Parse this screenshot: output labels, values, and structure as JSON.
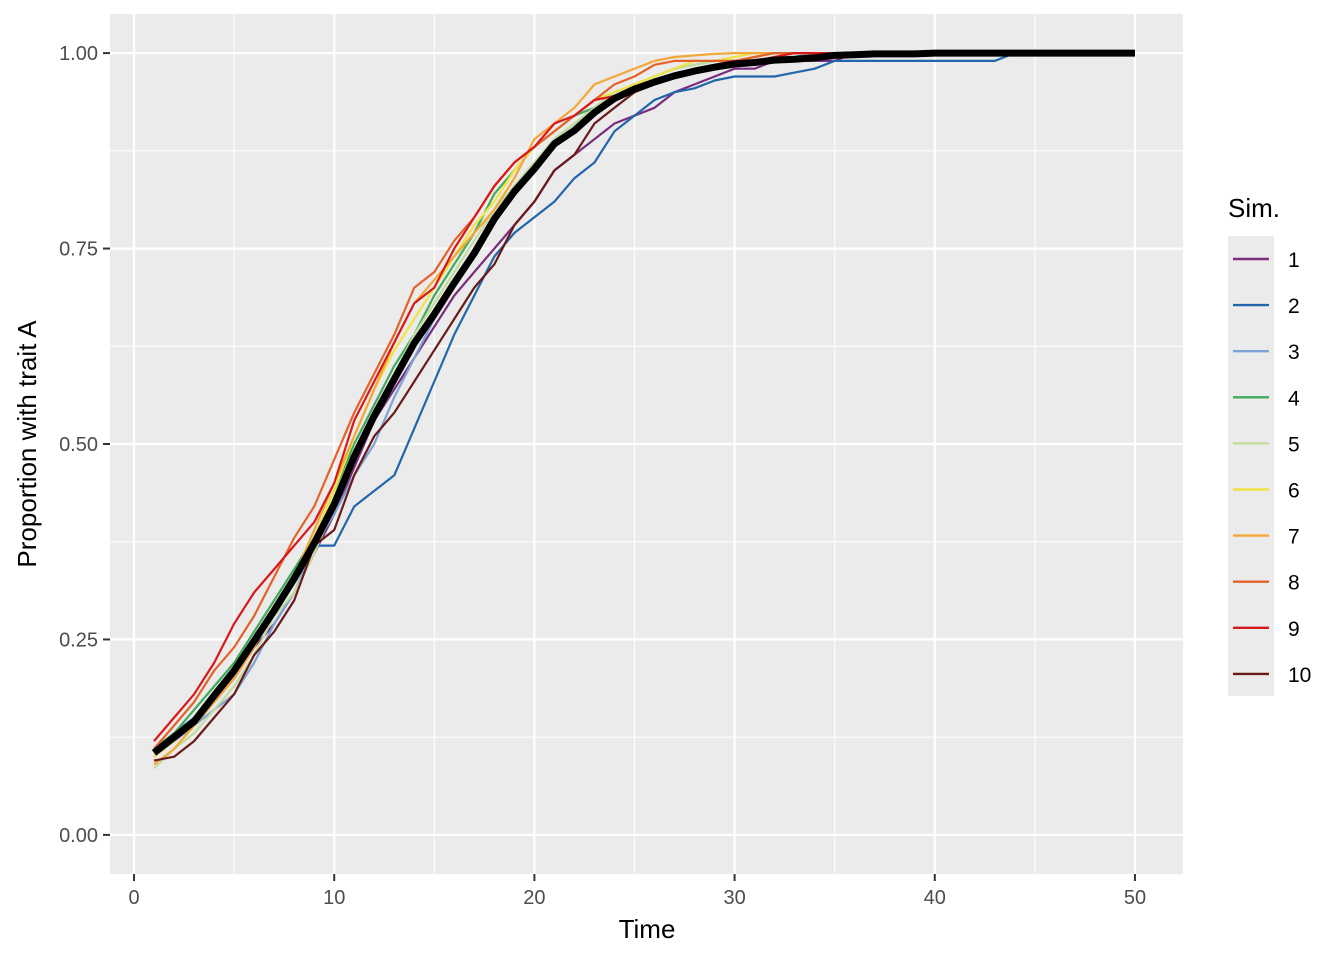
{
  "chart_data": {
    "type": "line",
    "xlabel": "Time",
    "ylabel": "Proportion with trait A",
    "xlim": [
      -1.2,
      52.4
    ],
    "ylim": [
      -0.05,
      1.05
    ],
    "xticks": [
      0,
      10,
      20,
      30,
      40,
      50
    ],
    "xtick_labels": [
      "0",
      "10",
      "20",
      "30",
      "40",
      "50"
    ],
    "yticks": [
      0,
      0.25,
      0.5,
      0.75,
      1
    ],
    "ytick_labels": [
      "0.00",
      "0.25",
      "0.50",
      "0.75",
      "1.00"
    ],
    "grid": true,
    "background": "#ebebeb",
    "legend": {
      "title": "Sim.",
      "position": "right"
    },
    "x": [
      1,
      2,
      3,
      4,
      5,
      6,
      7,
      8,
      9,
      10,
      11,
      12,
      13,
      14,
      15,
      16,
      17,
      18,
      19,
      20,
      21,
      22,
      23,
      24,
      25,
      26,
      27,
      28,
      29,
      30,
      31,
      32,
      33,
      34,
      35,
      36,
      37,
      38,
      39,
      40,
      41,
      42,
      43,
      44,
      45,
      46,
      47,
      48,
      49,
      50
    ],
    "series": [
      {
        "name": "1",
        "color": "#7b2c7f",
        "values": [
          0.1,
          0.12,
          0.14,
          0.17,
          0.2,
          0.24,
          0.27,
          0.31,
          0.36,
          0.41,
          0.47,
          0.53,
          0.57,
          0.61,
          0.65,
          0.69,
          0.72,
          0.75,
          0.78,
          0.81,
          0.85,
          0.87,
          0.89,
          0.91,
          0.92,
          0.93,
          0.95,
          0.96,
          0.97,
          0.98,
          0.98,
          0.99,
          0.99,
          0.99,
          0.99,
          1.0,
          1.0,
          1.0,
          1.0,
          1.0,
          1.0,
          1.0,
          1.0,
          1.0,
          1.0,
          1.0,
          1.0,
          1.0,
          1.0,
          1.0
        ]
      },
      {
        "name": "2",
        "color": "#2166ac",
        "values": [
          0.11,
          0.13,
          0.15,
          0.18,
          0.21,
          0.25,
          0.29,
          0.33,
          0.37,
          0.37,
          0.42,
          0.44,
          0.46,
          0.52,
          0.58,
          0.64,
          0.69,
          0.74,
          0.77,
          0.79,
          0.81,
          0.84,
          0.86,
          0.9,
          0.92,
          0.94,
          0.95,
          0.955,
          0.965,
          0.97,
          0.97,
          0.97,
          0.975,
          0.98,
          0.99,
          0.99,
          0.99,
          0.99,
          0.99,
          0.99,
          0.99,
          0.99,
          0.99,
          1.0,
          1.0,
          1.0,
          1.0,
          1.0,
          1.0,
          1.0
        ]
      },
      {
        "name": "3",
        "color": "#7ba3d6",
        "values": [
          0.1,
          0.12,
          0.14,
          0.16,
          0.18,
          0.22,
          0.27,
          0.31,
          0.37,
          0.41,
          0.46,
          0.5,
          0.56,
          0.61,
          0.66,
          0.71,
          0.75,
          0.79,
          0.83,
          0.86,
          0.89,
          0.91,
          0.93,
          0.94,
          0.95,
          0.96,
          0.97,
          0.98,
          0.98,
          0.99,
          0.99,
          0.99,
          0.995,
          1.0,
          1.0,
          1.0,
          1.0,
          1.0,
          1.0,
          1.0,
          1.0,
          1.0,
          1.0,
          1.0,
          1.0,
          1.0,
          1.0,
          1.0,
          1.0,
          1.0
        ]
      },
      {
        "name": "4",
        "color": "#41ab5d",
        "values": [
          0.11,
          0.13,
          0.16,
          0.19,
          0.22,
          0.26,
          0.3,
          0.34,
          0.38,
          0.44,
          0.5,
          0.55,
          0.6,
          0.64,
          0.69,
          0.73,
          0.77,
          0.82,
          0.85,
          0.88,
          0.9,
          0.92,
          0.93,
          0.95,
          0.96,
          0.97,
          0.98,
          0.985,
          0.99,
          0.99,
          0.995,
          1.0,
          1.0,
          1.0,
          1.0,
          1.0,
          1.0,
          1.0,
          1.0,
          1.0,
          1.0,
          1.0,
          1.0,
          1.0,
          1.0,
          1.0,
          1.0,
          1.0,
          1.0,
          1.0
        ]
      },
      {
        "name": "5",
        "color": "#c2dd9a",
        "values": [
          0.085,
          0.11,
          0.13,
          0.16,
          0.19,
          0.23,
          0.28,
          0.31,
          0.36,
          0.42,
          0.48,
          0.54,
          0.59,
          0.64,
          0.68,
          0.72,
          0.76,
          0.8,
          0.83,
          0.86,
          0.89,
          0.91,
          0.93,
          0.95,
          0.96,
          0.97,
          0.98,
          0.985,
          0.99,
          0.99,
          0.995,
          1.0,
          1.0,
          1.0,
          1.0,
          1.0,
          1.0,
          1.0,
          1.0,
          1.0,
          1.0,
          1.0,
          1.0,
          1.0,
          1.0,
          1.0,
          1.0,
          1.0,
          1.0,
          1.0
        ]
      },
      {
        "name": "6",
        "color": "#f0e442",
        "values": [
          0.1,
          0.12,
          0.15,
          0.18,
          0.21,
          0.25,
          0.29,
          0.33,
          0.38,
          0.44,
          0.51,
          0.57,
          0.62,
          0.66,
          0.7,
          0.74,
          0.78,
          0.81,
          0.85,
          0.88,
          0.9,
          0.92,
          0.94,
          0.95,
          0.96,
          0.97,
          0.98,
          0.99,
          0.99,
          0.995,
          1.0,
          1.0,
          1.0,
          1.0,
          1.0,
          1.0,
          1.0,
          1.0,
          1.0,
          1.0,
          1.0,
          1.0,
          1.0,
          1.0,
          1.0,
          1.0,
          1.0,
          1.0,
          1.0,
          1.0
        ]
      },
      {
        "name": "7",
        "color": "#f4a636",
        "values": [
          0.09,
          0.11,
          0.14,
          0.17,
          0.2,
          0.24,
          0.29,
          0.33,
          0.39,
          0.45,
          0.51,
          0.57,
          0.63,
          0.68,
          0.71,
          0.74,
          0.77,
          0.8,
          0.84,
          0.89,
          0.91,
          0.93,
          0.96,
          0.97,
          0.98,
          0.99,
          0.995,
          0.997,
          0.999,
          1.0,
          1.0,
          1.0,
          1.0,
          1.0,
          1.0,
          1.0,
          1.0,
          1.0,
          1.0,
          1.0,
          1.0,
          1.0,
          1.0,
          1.0,
          1.0,
          1.0,
          1.0,
          1.0,
          1.0,
          1.0
        ]
      },
      {
        "name": "8",
        "color": "#e3622a",
        "values": [
          0.11,
          0.14,
          0.17,
          0.21,
          0.24,
          0.28,
          0.33,
          0.38,
          0.42,
          0.48,
          0.54,
          0.59,
          0.64,
          0.7,
          0.72,
          0.76,
          0.79,
          0.83,
          0.86,
          0.88,
          0.9,
          0.92,
          0.94,
          0.96,
          0.97,
          0.985,
          0.99,
          0.99,
          0.99,
          0.99,
          0.995,
          1.0,
          1.0,
          1.0,
          1.0,
          1.0,
          1.0,
          1.0,
          1.0,
          1.0,
          1.0,
          1.0,
          1.0,
          1.0,
          1.0,
          1.0,
          1.0,
          1.0,
          1.0,
          1.0
        ]
      },
      {
        "name": "9",
        "color": "#d7191c",
        "values": [
          0.12,
          0.15,
          0.18,
          0.22,
          0.27,
          0.31,
          0.34,
          0.37,
          0.4,
          0.45,
          0.53,
          0.58,
          0.63,
          0.68,
          0.7,
          0.75,
          0.79,
          0.83,
          0.86,
          0.88,
          0.91,
          0.92,
          0.94,
          0.945,
          0.95,
          0.96,
          0.97,
          0.98,
          0.985,
          0.99,
          0.99,
          0.995,
          1.0,
          1.0,
          1.0,
          1.0,
          1.0,
          1.0,
          1.0,
          1.0,
          1.0,
          1.0,
          1.0,
          1.0,
          1.0,
          1.0,
          1.0,
          1.0,
          1.0,
          1.0
        ]
      },
      {
        "name": "10",
        "color": "#6b1a1a",
        "values": [
          0.095,
          0.1,
          0.12,
          0.15,
          0.18,
          0.23,
          0.26,
          0.3,
          0.37,
          0.39,
          0.46,
          0.51,
          0.54,
          0.58,
          0.62,
          0.66,
          0.7,
          0.73,
          0.78,
          0.81,
          0.85,
          0.87,
          0.91,
          0.93,
          0.95,
          0.96,
          0.97,
          0.975,
          0.98,
          0.985,
          0.99,
          0.99,
          0.99,
          0.995,
          1.0,
          1.0,
          1.0,
          1.0,
          1.0,
          1.0,
          1.0,
          1.0,
          1.0,
          1.0,
          1.0,
          1.0,
          1.0,
          1.0,
          1.0,
          1.0
        ]
      }
    ],
    "mean_series": {
      "color": "#000000",
      "values": [
        0.105,
        0.125,
        0.145,
        0.178,
        0.21,
        0.248,
        0.287,
        0.328,
        0.373,
        0.423,
        0.484,
        0.536,
        0.583,
        0.629,
        0.666,
        0.706,
        0.744,
        0.788,
        0.823,
        0.852,
        0.884,
        0.901,
        0.924,
        0.942,
        0.954,
        0.963,
        0.971,
        0.977,
        0.982,
        0.986,
        0.988,
        0.991,
        0.992,
        0.994,
        0.997,
        0.998,
        0.999,
        0.999,
        0.999,
        1.0,
        1.0,
        1.0,
        1.0,
        1.0,
        1.0,
        1.0,
        1.0,
        1.0,
        1.0,
        1.0
      ]
    }
  }
}
